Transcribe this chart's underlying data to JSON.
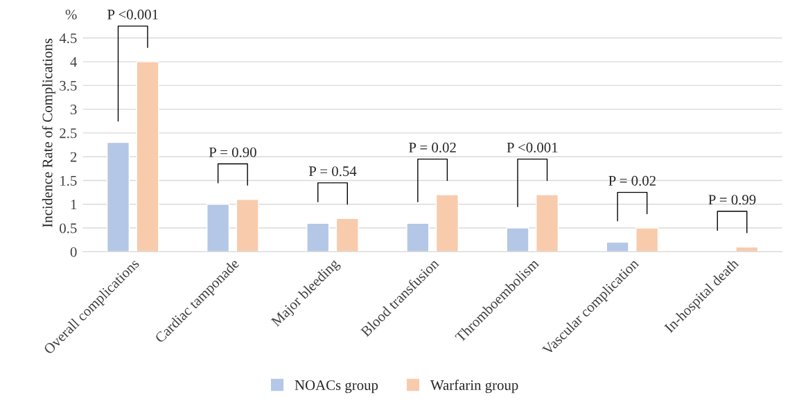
{
  "chart_data": {
    "type": "bar",
    "ylabel": "Incidence Rate of Complications",
    "categories": [
      "Overall complications",
      "Cardiac tamponade",
      "Major bleeding",
      "Blood transfusion",
      "Thromboembolism",
      "Vascular complication",
      "In-hospital death"
    ],
    "series": [
      {
        "name": "NOACs group",
        "color": "#b4c7e7",
        "values": [
          2.3,
          1.0,
          0.6,
          0.6,
          0.5,
          0.2,
          null
        ]
      },
      {
        "name": "Warfarin group",
        "color": "#f8cbad",
        "values": [
          4.0,
          1.1,
          0.7,
          1.2,
          1.2,
          0.5,
          0.1
        ]
      }
    ],
    "ylim": [
      0,
      5
    ],
    "yticks": [
      0,
      0.5,
      1,
      1.5,
      2,
      2.5,
      3,
      3.5,
      4,
      4.5,
      {
        "value": 5,
        "label": "%"
      }
    ],
    "annotations": [
      "P <0.001",
      "P = 0.90",
      "P = 0.54",
      "P = 0.02",
      "P <0.001",
      "P = 0.02",
      "P = 0.99"
    ],
    "grid": "y",
    "legend": "bottom"
  }
}
